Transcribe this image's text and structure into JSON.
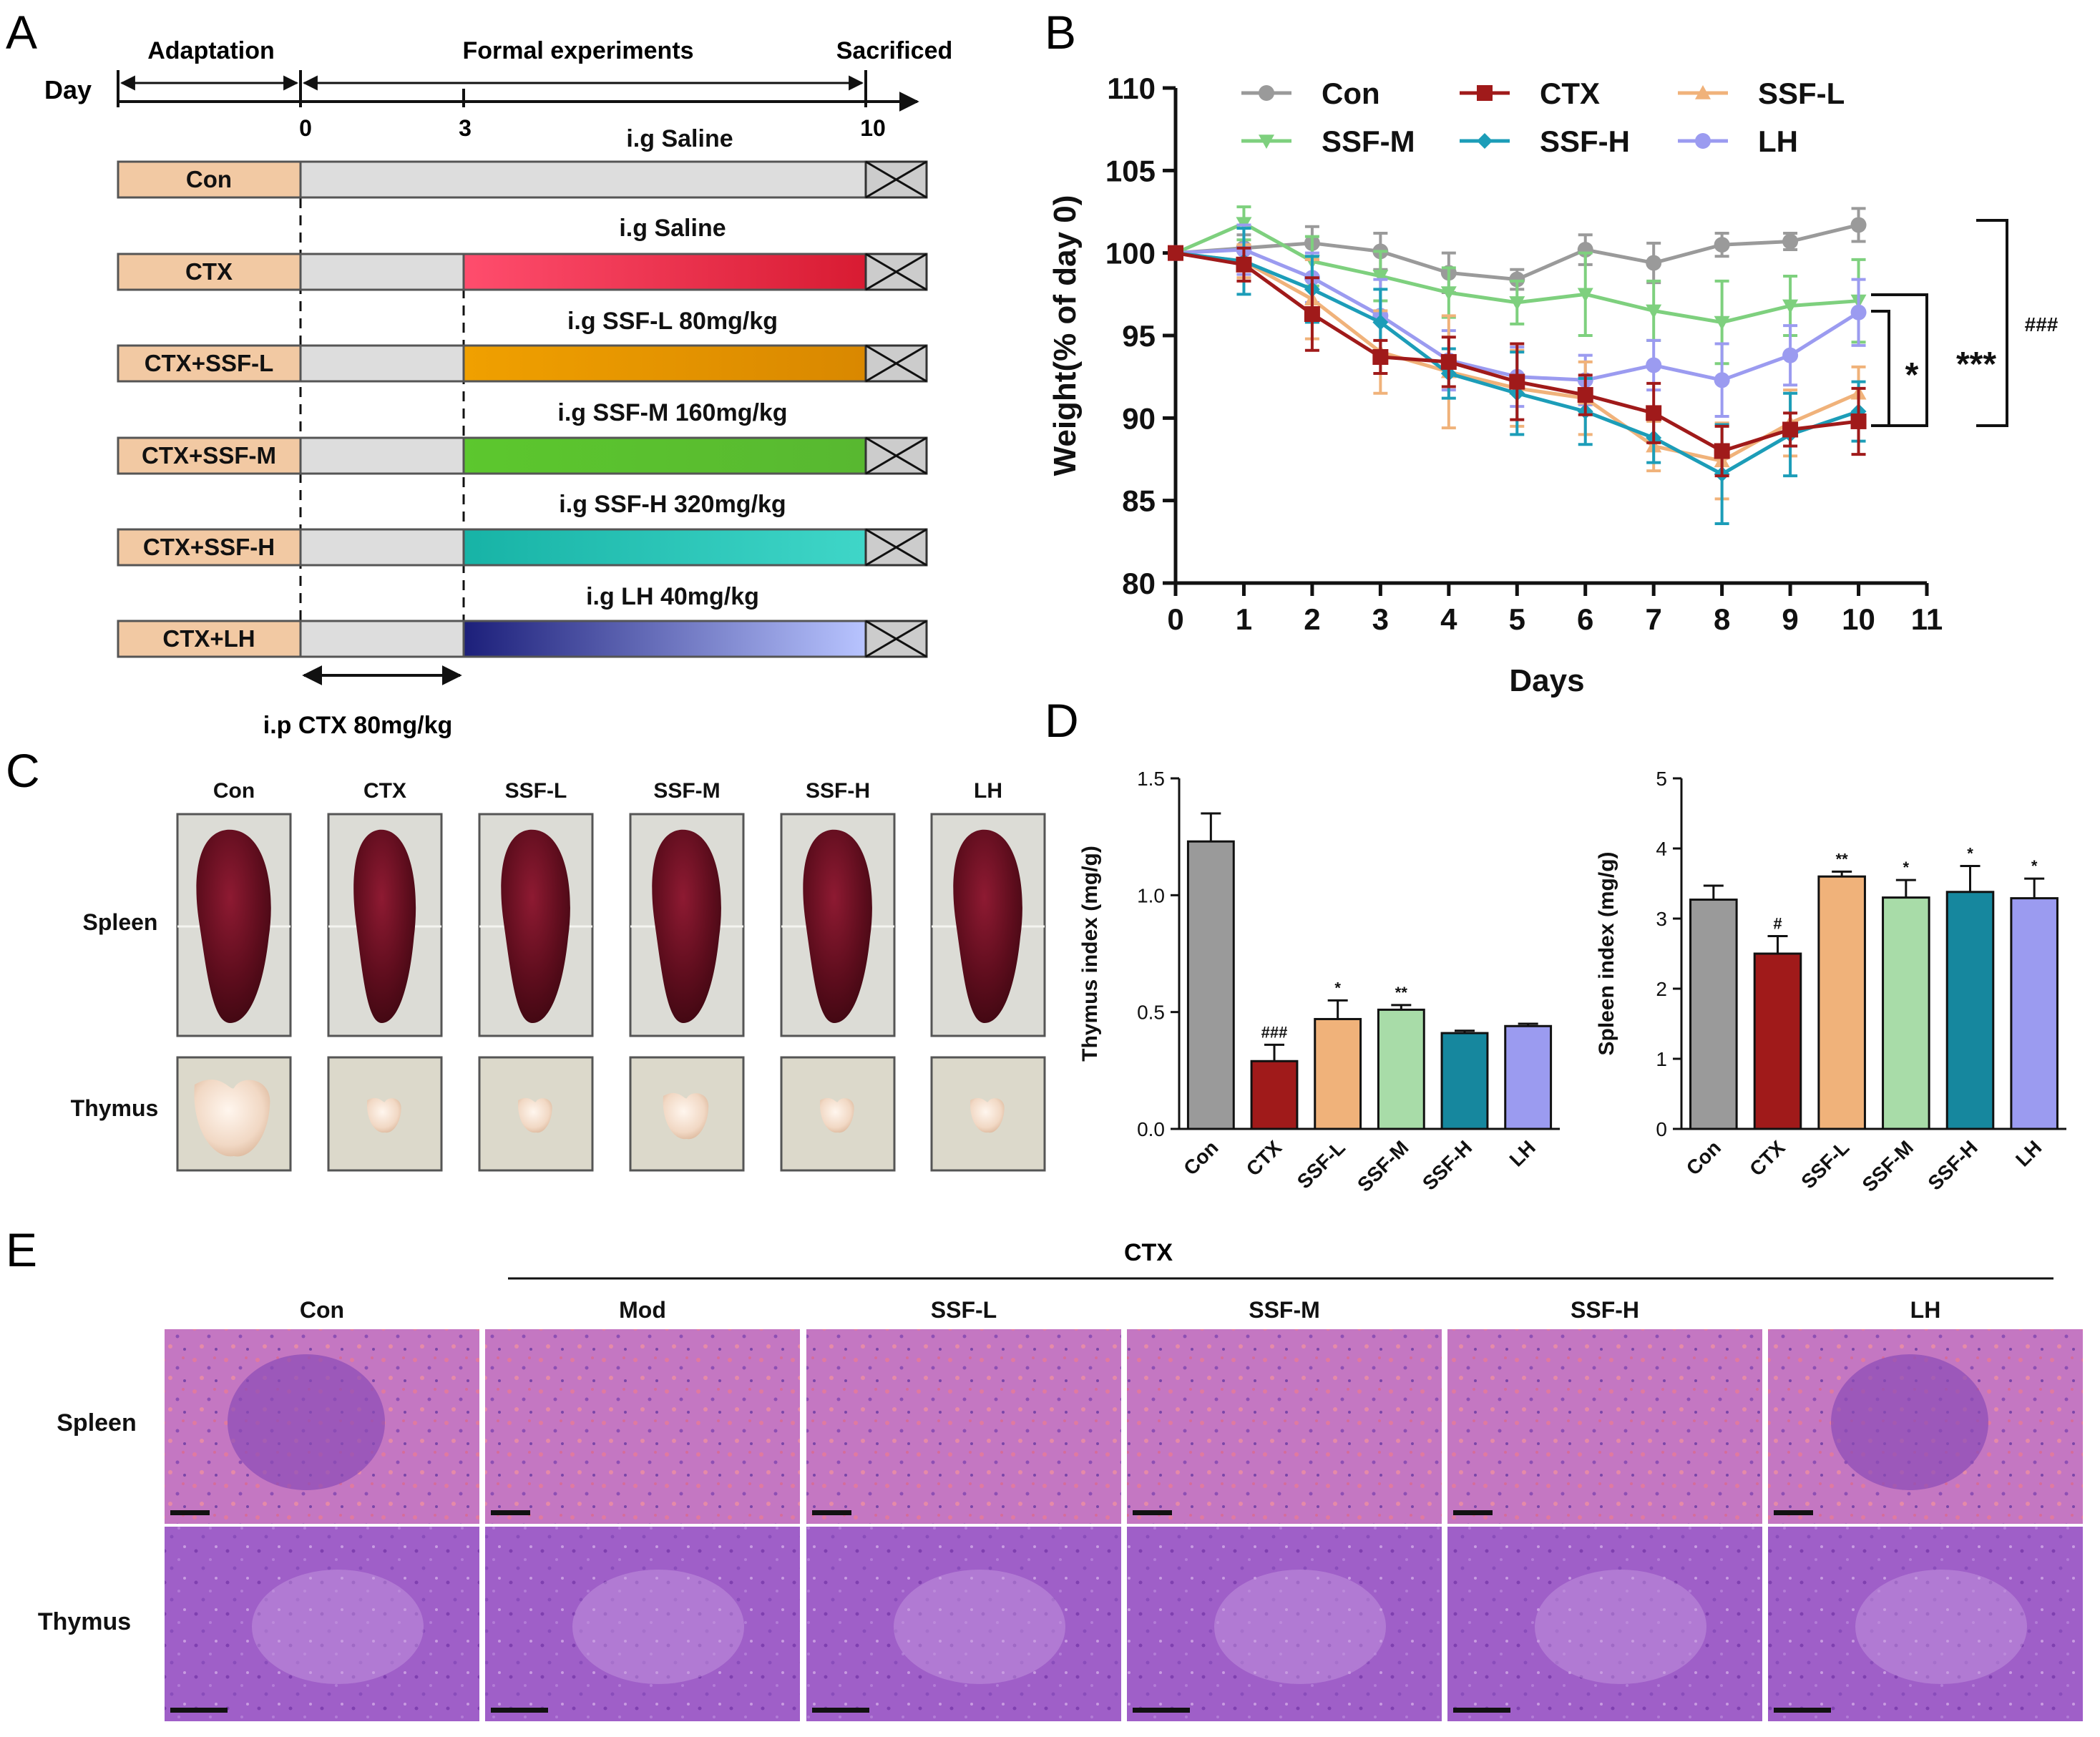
{
  "colors": {
    "con": "#9a9a9a",
    "ctx": "#a01a1a",
    "ssfl": "#f0b27a",
    "ssfm": "#a8dca8",
    "ssfh": "#16879e",
    "lh": "#9b9bf0",
    "ssfm_line": "#7ed07e",
    "ssfh_line": "#1c9db8",
    "box_fill": "#f2c9a3",
    "box_stroke": "#555555",
    "bar_gray": "#dddddd"
  },
  "panel_labels": {
    "a": "A",
    "b": "B",
    "c": "C",
    "d": "D",
    "e": "E"
  },
  "panel_a": {
    "day_label": "Day",
    "phase_adaptation": "Adaptation",
    "phase_formal": "Formal experiments",
    "phase_sacrificed": "Sacrificed",
    "day_ticks": [
      "0",
      "3",
      "10"
    ],
    "groups": [
      {
        "name": "Con",
        "treatment": "i.g Saline",
        "color": "#dddddd",
        "color_end": "#dddddd"
      },
      {
        "name": "CTX",
        "treatment": "i.g Saline",
        "color": "#ff4d6d",
        "color_end": "#d81b32"
      },
      {
        "name": "CTX+SSF-L",
        "treatment": "i.g SSF-L 80mg/kg",
        "color": "#f0a000",
        "color_end": "#d98800"
      },
      {
        "name": "CTX+SSF-M",
        "treatment": "i.g SSF-M 160mg/kg",
        "color": "#5cc72e",
        "color_end": "#58b830"
      },
      {
        "name": "CTX+SSF-H",
        "treatment": "i.g SSF-H 320mg/kg",
        "color": "#17b3a6",
        "color_end": "#3fd6c8"
      },
      {
        "name": "CTX+LH",
        "treatment": "i.g LH 40mg/kg",
        "color": "#1c1f7a",
        "color_end": "#b8c4ff"
      }
    ],
    "ip_label": "i.p CTX 80mg/kg"
  },
  "chart_data": [
    {
      "type": "line",
      "panel": "B",
      "xlabel": "Days",
      "ylabel": "Weight(% of day 0)",
      "xlim": [
        0,
        11
      ],
      "ylim": [
        80,
        110
      ],
      "xticks": [
        "0",
        "1",
        "2",
        "3",
        "4",
        "5",
        "6",
        "7",
        "8",
        "9",
        "10",
        "11"
      ],
      "yticks": [
        "80",
        "85",
        "90",
        "95",
        "100",
        "105",
        "110"
      ],
      "x": [
        0,
        1,
        2,
        3,
        4,
        5,
        6,
        7,
        8,
        9,
        10
      ],
      "series": [
        {
          "name": "Con",
          "key": "con",
          "marker": "circle",
          "values": [
            100,
            100.3,
            100.6,
            100.1,
            98.8,
            98.4,
            100.2,
            99.4,
            100.5,
            100.7,
            101.7
          ],
          "errors": [
            0,
            0.8,
            1,
            1.1,
            1.2,
            0.6,
            0.9,
            1.2,
            0.7,
            0.5,
            1
          ]
        },
        {
          "name": "CTX",
          "key": "ctx",
          "marker": "square",
          "values": [
            100,
            99.3,
            96.3,
            93.7,
            93.4,
            92.2,
            91.4,
            90.3,
            88,
            89.3,
            89.8
          ],
          "errors": [
            0,
            1,
            2.2,
            1,
            1.5,
            2.3,
            1.2,
            1.8,
            1.5,
            1,
            2
          ]
        },
        {
          "name": "SSF-L",
          "key": "ssfl",
          "marker": "triangle-up",
          "values": [
            100,
            99.5,
            97.2,
            94,
            92.8,
            91.8,
            91.2,
            88.3,
            87.4,
            89.7,
            91.5
          ],
          "errors": [
            0,
            1,
            2.4,
            2.5,
            3.4,
            2.3,
            2.2,
            1.5,
            2.3,
            2,
            1.6
          ]
        },
        {
          "name": "SSF-M",
          "key": "ssfm",
          "marker": "triangle-down",
          "values": [
            100,
            101.8,
            99.5,
            98.6,
            97.6,
            97,
            97.5,
            96.5,
            95.8,
            96.8,
            97.1
          ],
          "errors": [
            0,
            1,
            1.5,
            1.5,
            1.5,
            1.3,
            2.5,
            1.8,
            2.5,
            1.8,
            2.5
          ]
        },
        {
          "name": "SSF-H",
          "key": "ssfh",
          "marker": "diamond",
          "values": [
            100,
            99.5,
            97.8,
            95.8,
            92.7,
            91.5,
            90.4,
            88.8,
            86.6,
            89,
            90.4
          ],
          "errors": [
            0,
            2,
            2,
            2,
            1.5,
            2.5,
            2,
            1.5,
            3,
            2.5,
            1.8
          ]
        },
        {
          "name": "LH",
          "key": "lh",
          "marker": "circle",
          "values": [
            100,
            100.2,
            98.5,
            96.2,
            93.5,
            92.5,
            92.3,
            93.2,
            92.3,
            93.8,
            96.4
          ],
          "errors": [
            0,
            1.5,
            1.5,
            2.2,
            1.8,
            1.8,
            1.5,
            1.5,
            2.2,
            1.8,
            2
          ]
        }
      ],
      "significance": [
        {
          "label": "*",
          "compare": "LH vs CTX"
        },
        {
          "label": "***",
          "compare": "SSF-M vs CTX"
        },
        {
          "label": "###",
          "compare": "Con vs CTX"
        }
      ]
    },
    {
      "type": "bar",
      "panel": "D-left",
      "ylabel": "Thymus index (mg/g)",
      "ylim": [
        0,
        1.5
      ],
      "yticks": [
        "0.0",
        "0.5",
        "1.0",
        "1.5"
      ],
      "categories": [
        "Con",
        "CTX",
        "SSF-L",
        "SSF-M",
        "SSF-H",
        "LH"
      ],
      "values": [
        1.23,
        0.29,
        0.47,
        0.51,
        0.41,
        0.44
      ],
      "errors": [
        0.12,
        0.07,
        0.08,
        0.02,
        0.01,
        0.01
      ],
      "annotations": [
        "",
        "###",
        "*",
        "**",
        "",
        ""
      ]
    },
    {
      "type": "bar",
      "panel": "D-right",
      "ylabel": "Spleen index (mg/g)",
      "ylim": [
        0,
        5
      ],
      "yticks": [
        "0",
        "1",
        "2",
        "3",
        "4",
        "5"
      ],
      "categories": [
        "Con",
        "CTX",
        "SSF-L",
        "SSF-M",
        "SSF-H",
        "LH"
      ],
      "values": [
        3.27,
        2.5,
        3.6,
        3.3,
        3.38,
        3.29
      ],
      "errors": [
        0.2,
        0.25,
        0.07,
        0.25,
        0.37,
        0.28
      ],
      "annotations": [
        "",
        "#",
        "**",
        "*",
        "*",
        "*"
      ]
    }
  ],
  "panel_c": {
    "columns": [
      "Con",
      "CTX",
      "SSF-L",
      "SSF-M",
      "SSF-H",
      "LH"
    ],
    "rows": [
      "Spleen",
      "Thymus"
    ]
  },
  "panel_e": {
    "group_header": "CTX",
    "columns": [
      "Con",
      "Mod",
      "SSF-L",
      "SSF-M",
      "SSF-H",
      "LH"
    ],
    "rows": [
      "Spleen",
      "Thymus"
    ]
  }
}
